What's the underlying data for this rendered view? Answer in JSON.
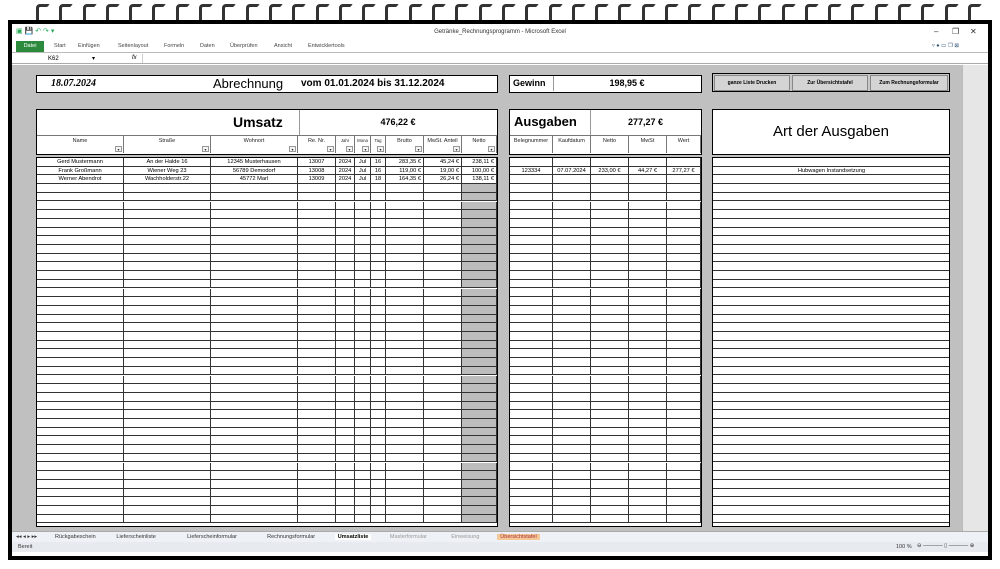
{
  "window": {
    "title": "Getränke_Rechnungsprogramm - Microsoft Excel"
  },
  "ribbon": {
    "tabs": [
      "Datei",
      "Start",
      "Einfügen",
      "Seitenlayout",
      "Formeln",
      "Daten",
      "Überprüfen",
      "Ansicht",
      "Entwicklertools"
    ]
  },
  "formula_bar": {
    "name_box": "K62",
    "fx": "fx",
    "value": ""
  },
  "sheet": {
    "date": "18.07.2024",
    "title_a": "Abrechnung",
    "title_b": "vom 01.01.2024 bis 31.12.2024",
    "gewinn_label": "Gewinn",
    "gewinn_value": "198,95 €",
    "buttons": [
      "ganze Liste Drucken",
      "Zur Übersichtstafel",
      "Zum Rechnungsformular"
    ],
    "umsatz": {
      "title": "Umsatz",
      "total": "476,22 €",
      "headers": [
        "Name",
        "Straße",
        "Wohnort",
        "Re. Nr.",
        "Jahr",
        "Mona",
        "Tag",
        "Brutto",
        "MwSt. Anteil",
        "Netto"
      ],
      "rows": [
        [
          "Gerd Mustermann",
          "An der Halde 16",
          "12345 Musterhausen",
          "13007",
          "2024",
          "Jul",
          "16",
          "283,35 €",
          "45,24 €",
          "238,11 €"
        ],
        [
          "Frank Großmann",
          "Wiener Weg 23",
          "56789 Demodorf",
          "13008",
          "2024",
          "Jul",
          "16",
          "119,00 €",
          "19,00 €",
          "100,00 €"
        ],
        [
          "Werner Abendrot",
          "Wachholderstr.22",
          "45772 Marl",
          "13009",
          "2024",
          "Jul",
          "18",
          "164,35 €",
          "26,24 €",
          "138,11 €"
        ]
      ]
    },
    "ausgaben": {
      "title": "Ausgaben",
      "total": "277,27 €",
      "headers": [
        "Belegnummer",
        "Kaufdatum",
        "Netto",
        "MwSt",
        "Wert"
      ],
      "rows": [
        [
          "",
          "",
          "",
          "",
          ""
        ],
        [
          "123334",
          "07.07.2024",
          "233,00 €",
          "44,27 €",
          "277,27 €"
        ]
      ]
    },
    "art": {
      "title": "Art der Ausgaben",
      "rows": [
        "",
        "Hubwagen Instandsetzung"
      ]
    }
  },
  "sheet_tabs": [
    "Rückgabeschein",
    "Lieferscheinliste",
    "Lieferscheinformular",
    "Rechnungsformular",
    "Umsatzliste",
    "Masterformular",
    "Einweisung",
    "Übersichtstafel"
  ],
  "active_tab": "Umsatzliste",
  "status": {
    "ready": "Bereit",
    "zoom": "100 %"
  },
  "colors": {
    "sheet_bg": "#c0c0c0",
    "datei_tab": "#2c8a3c",
    "uebersicht_tab": "#f5c89a"
  }
}
